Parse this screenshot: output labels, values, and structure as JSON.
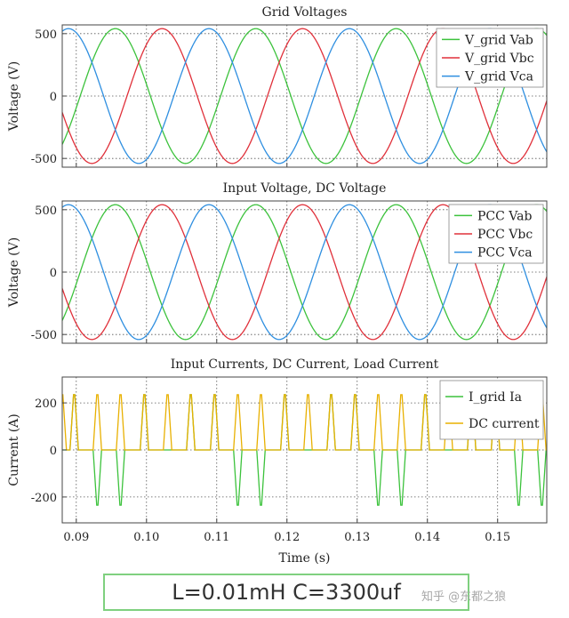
{
  "chart_data": [
    {
      "type": "line",
      "title": "Grid Voltages",
      "ylabel": "Voltage (V)",
      "xlim": [
        0.088,
        0.157
      ],
      "ylim": [
        -570,
        570
      ],
      "yticks": [
        -500,
        0,
        500
      ],
      "xticks": [
        0.09,
        0.1,
        0.11,
        0.12,
        0.13,
        0.14,
        0.15
      ],
      "grid": true,
      "legend_position": "top-right",
      "waveform": {
        "shape": "sine",
        "amplitude": 540,
        "frequency_hz": 50
      },
      "series": [
        {
          "name": "V_grid Vab",
          "color": "#3cc23c",
          "phase_deg": 170
        },
        {
          "name": "V_grid Vbc",
          "color": "#e0303a",
          "phase_deg": 50
        },
        {
          "name": "V_grid Vca",
          "color": "#2f8fe0",
          "phase_deg": -70
        }
      ]
    },
    {
      "type": "line",
      "title": "Input Voltage, DC Voltage",
      "ylabel": "Voltage (V)",
      "xlim": [
        0.088,
        0.157
      ],
      "ylim": [
        -570,
        570
      ],
      "yticks": [
        -500,
        0,
        500
      ],
      "xticks": [
        0.09,
        0.1,
        0.11,
        0.12,
        0.13,
        0.14,
        0.15
      ],
      "grid": true,
      "legend_position": "top-right",
      "waveform": {
        "shape": "sine",
        "amplitude": 540,
        "frequency_hz": 50
      },
      "series": [
        {
          "name": "PCC Vab",
          "color": "#3cc23c",
          "phase_deg": 170
        },
        {
          "name": "PCC Vbc",
          "color": "#e0303a",
          "phase_deg": 50
        },
        {
          "name": "PCC Vca",
          "color": "#2f8fe0",
          "phase_deg": -70
        }
      ]
    },
    {
      "type": "line",
      "title": "Input Currents, DC Current, Load Current",
      "ylabel": "Current (A)",
      "xlabel": "Time (s)",
      "xlim": [
        0.088,
        0.157
      ],
      "ylim": [
        -310,
        310
      ],
      "yticks": [
        -200,
        0,
        200
      ],
      "xticks": [
        0.09,
        0.1,
        0.11,
        0.12,
        0.13,
        0.14,
        0.15
      ],
      "xticklabels": [
        "0.09",
        "0.10",
        "0.11",
        "0.12",
        "0.13",
        "0.14",
        "0.15"
      ],
      "grid": true,
      "legend_position": "top-right",
      "series": [
        {
          "name": "I_grid Ia",
          "color": "#3cc23c",
          "pulse_peak": 235,
          "pulse_half_width_s": 0.0006,
          "pulse_times_s": [
            0.0897,
            0.093,
            0.0963,
            0.0997,
            0.1063,
            0.1097,
            0.113,
            0.1163,
            0.1197,
            0.1263,
            0.1297,
            0.133,
            0.1363,
            0.1397,
            0.1463,
            0.1497,
            0.153,
            0.1563
          ],
          "pulse_signs": [
            1,
            -1,
            -1,
            1,
            1,
            1,
            -1,
            -1,
            1,
            1,
            1,
            -1,
            -1,
            1,
            1,
            1,
            -1,
            -1
          ]
        },
        {
          "name": "DC current",
          "color": "#e8b000",
          "pulse_peak": 235,
          "pulse_half_width_s": 0.0006,
          "pulse_times_s": [
            0.088,
            0.0897,
            0.093,
            0.0963,
            0.0997,
            0.103,
            0.1063,
            0.1097,
            0.113,
            0.1163,
            0.1197,
            0.123,
            0.1263,
            0.1297,
            0.133,
            0.1363,
            0.1397,
            0.143,
            0.1463,
            0.1497,
            0.153,
            0.1563
          ]
        }
      ]
    }
  ],
  "caption": "L=0.01mH C=3300uf",
  "watermark": "知乎 @东都之狼"
}
